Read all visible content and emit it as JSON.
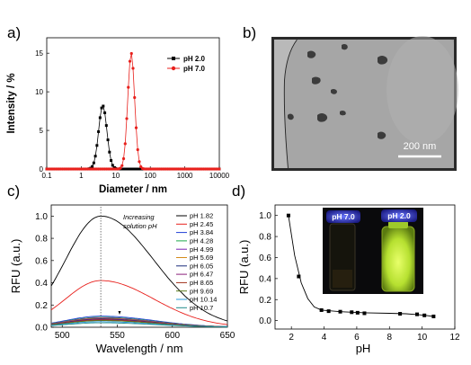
{
  "panels": {
    "a": "a)",
    "b": "b)",
    "c": "c)",
    "d": "d)"
  },
  "tem": {
    "scale_bar": "200 nm"
  },
  "photo": {
    "vial_left": "pH 7.0",
    "vial_right": "pH 2.0"
  },
  "colors": {
    "ph2": "#000000",
    "ph7": "#e8201c",
    "vial_glow": "#c9ef3a"
  },
  "chart_data": [
    {
      "id": "a",
      "type": "line",
      "xlabel": "Diameter / nm",
      "ylabel": "Intensity / %",
      "xscale": "log",
      "xlim": [
        0.1,
        10000
      ],
      "ylim": [
        0,
        17
      ],
      "xticks": [
        0.1,
        1,
        10,
        100,
        1000,
        10000
      ],
      "xtick_labels": [
        "0.1",
        "1",
        "10",
        "100",
        "1000",
        "10000"
      ],
      "yticks": [
        0,
        5,
        10,
        15
      ],
      "ytick_labels": [
        "0",
        "5",
        "10",
        "15"
      ],
      "legend": "top-right",
      "series": [
        {
          "name": "pH 2.0",
          "color": "#000000",
          "marker": "square",
          "peak_x": 4.2,
          "peak_y": 8.2,
          "sigma_log10": 0.12,
          "cutoff_log10": 0.42
        },
        {
          "name": "pH 7.0",
          "color": "#e8201c",
          "marker": "circle",
          "peak_x": 28,
          "peak_y": 15.0,
          "sigma_log10": 0.1,
          "cutoff_log10": 0.38
        }
      ]
    },
    {
      "id": "c",
      "type": "line",
      "xlabel": "Wavelength / nm",
      "ylabel": "RFU (a.u.)",
      "xlim": [
        490,
        650
      ],
      "ylim": [
        0,
        1.1
      ],
      "xticks": [
        500,
        550,
        600,
        650
      ],
      "xtick_labels": [
        "500",
        "550",
        "600",
        "650"
      ],
      "yticks": [
        0,
        0.2,
        0.4,
        0.6,
        0.8,
        1.0
      ],
      "ytick_labels": [
        "0.0",
        "0.2",
        "0.4",
        "0.6",
        "0.8",
        "1.0"
      ],
      "annotation": [
        "Increasing",
        "solution pH"
      ],
      "guide_x": 535,
      "legend": "top-right",
      "peak_x": 535,
      "sigma_left": 32,
      "sigma_right": 48,
      "series": [
        {
          "name": "pH 1.82",
          "color": "#000000",
          "peak": 1.0
        },
        {
          "name": "pH 2.45",
          "color": "#e8201c",
          "peak": 0.42
        },
        {
          "name": "pH 3.84",
          "color": "#1f3fd6",
          "peak": 0.1
        },
        {
          "name": "pH 4.28",
          "color": "#1aa84a",
          "peak": 0.09
        },
        {
          "name": "pH 4.99",
          "color": "#7a1fb0",
          "peak": 0.085
        },
        {
          "name": "pH 5.69",
          "color": "#d48a1a",
          "peak": 0.08
        },
        {
          "name": "pH 6.05",
          "color": "#1a2a7a",
          "peak": 0.075
        },
        {
          "name": "pH 6.47",
          "color": "#8a1f7a",
          "peak": 0.07
        },
        {
          "name": "pH 8.65",
          "color": "#a0301a",
          "peak": 0.065
        },
        {
          "name": "pH 9.69",
          "color": "#5a7a1a",
          "peak": 0.06
        },
        {
          "name": "pH 10.14",
          "color": "#2a9ad8",
          "peak": 0.05
        },
        {
          "name": "pH 10.7",
          "color": "#208a8a",
          "peak": 0.04
        }
      ]
    },
    {
      "id": "d",
      "type": "scatter",
      "xlabel": "pH",
      "ylabel": "RFU (a.u.)",
      "xlim": [
        1,
        12
      ],
      "ylim": [
        -0.08,
        1.1
      ],
      "xticks": [
        2,
        4,
        6,
        8,
        10,
        12
      ],
      "xtick_labels": [
        "2",
        "4",
        "6",
        "8",
        "10",
        "12"
      ],
      "yticks": [
        0,
        0.2,
        0.4,
        0.6,
        0.8,
        1.0
      ],
      "ytick_labels": [
        "0.0",
        "0.2",
        "0.4",
        "0.6",
        "0.8",
        "1.0"
      ],
      "points": [
        {
          "x": 1.82,
          "y": 1.0
        },
        {
          "x": 2.45,
          "y": 0.42
        },
        {
          "x": 3.84,
          "y": 0.1
        },
        {
          "x": 4.28,
          "y": 0.09
        },
        {
          "x": 4.99,
          "y": 0.085
        },
        {
          "x": 5.69,
          "y": 0.08
        },
        {
          "x": 6.05,
          "y": 0.075
        },
        {
          "x": 6.47,
          "y": 0.07
        },
        {
          "x": 8.65,
          "y": 0.065
        },
        {
          "x": 9.69,
          "y": 0.06
        },
        {
          "x": 10.14,
          "y": 0.05
        },
        {
          "x": 10.7,
          "y": 0.04
        }
      ],
      "fit": [
        {
          "x": 1.82,
          "y": 1.0
        },
        {
          "x": 2.2,
          "y": 0.62
        },
        {
          "x": 2.6,
          "y": 0.36
        },
        {
          "x": 3.0,
          "y": 0.21
        },
        {
          "x": 3.4,
          "y": 0.13
        },
        {
          "x": 3.84,
          "y": 0.1
        },
        {
          "x": 5.0,
          "y": 0.085
        },
        {
          "x": 6.5,
          "y": 0.075
        },
        {
          "x": 8.0,
          "y": 0.07
        },
        {
          "x": 9.0,
          "y": 0.065
        },
        {
          "x": 9.7,
          "y": 0.058
        },
        {
          "x": 10.2,
          "y": 0.05
        },
        {
          "x": 10.7,
          "y": 0.04
        }
      ]
    }
  ]
}
